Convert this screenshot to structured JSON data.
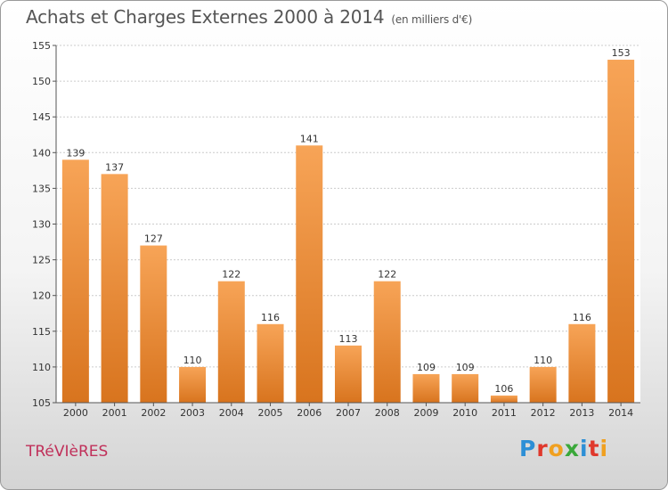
{
  "header": {
    "title": "Achats et Charges Externes 2000 à 2014",
    "subtitle": "(en milliers d'€)"
  },
  "footer": {
    "city": "TRéVIèRES",
    "logo_letters": [
      "P",
      "r",
      "o",
      "x",
      "i",
      "t",
      "i"
    ],
    "logo_colors": [
      "#2d8fd6",
      "#e0382c",
      "#f0a020",
      "#3aa83a",
      "#2d8fd6",
      "#e0382c",
      "#f0a020"
    ]
  },
  "chart_data": {
    "type": "bar",
    "title": "Achats et Charges Externes 2000 à 2014",
    "subtitle": "(en milliers d'€)",
    "xlabel": "",
    "ylabel": "",
    "categories": [
      "2000",
      "2001",
      "2002",
      "2003",
      "2004",
      "2005",
      "2006",
      "2007",
      "2008",
      "2009",
      "2010",
      "2011",
      "2012",
      "2013",
      "2014"
    ],
    "values": [
      139,
      137,
      127,
      110,
      122,
      116,
      141,
      113,
      122,
      109,
      109,
      106,
      110,
      116,
      153
    ],
    "ylim": [
      105,
      155
    ],
    "yticks": [
      105,
      110,
      115,
      120,
      125,
      130,
      135,
      140,
      145,
      150,
      155
    ],
    "grid": true,
    "bar_color_light": "#f7a457",
    "bar_color_dark": "#d8741e"
  }
}
